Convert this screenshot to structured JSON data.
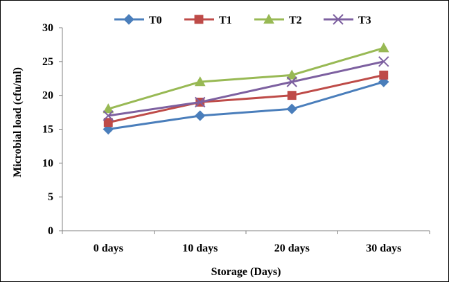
{
  "chart_data": {
    "type": "line",
    "categories": [
      "0 days",
      "10 days",
      "20 days",
      "30 days"
    ],
    "series": [
      {
        "name": "T0",
        "values": [
          15,
          17,
          18,
          22
        ],
        "color": "#4a7ebb",
        "marker": "diamond"
      },
      {
        "name": "T1",
        "values": [
          16,
          19,
          20,
          23
        ],
        "color": "#be4b48",
        "marker": "square"
      },
      {
        "name": "T2",
        "values": [
          18,
          22,
          23,
          27
        ],
        "color": "#98b954",
        "marker": "triangle"
      },
      {
        "name": "T3",
        "values": [
          17,
          19,
          22,
          25
        ],
        "color": "#7d60a0",
        "marker": "x"
      }
    ],
    "xlabel": "Storage (Days)",
    "ylabel": "Microbial load (cfu/ml)",
    "ylim": [
      0,
      30
    ],
    "yticks": [
      0,
      5,
      10,
      15,
      20,
      25,
      30
    ],
    "grid": false,
    "legend_position": "top"
  }
}
